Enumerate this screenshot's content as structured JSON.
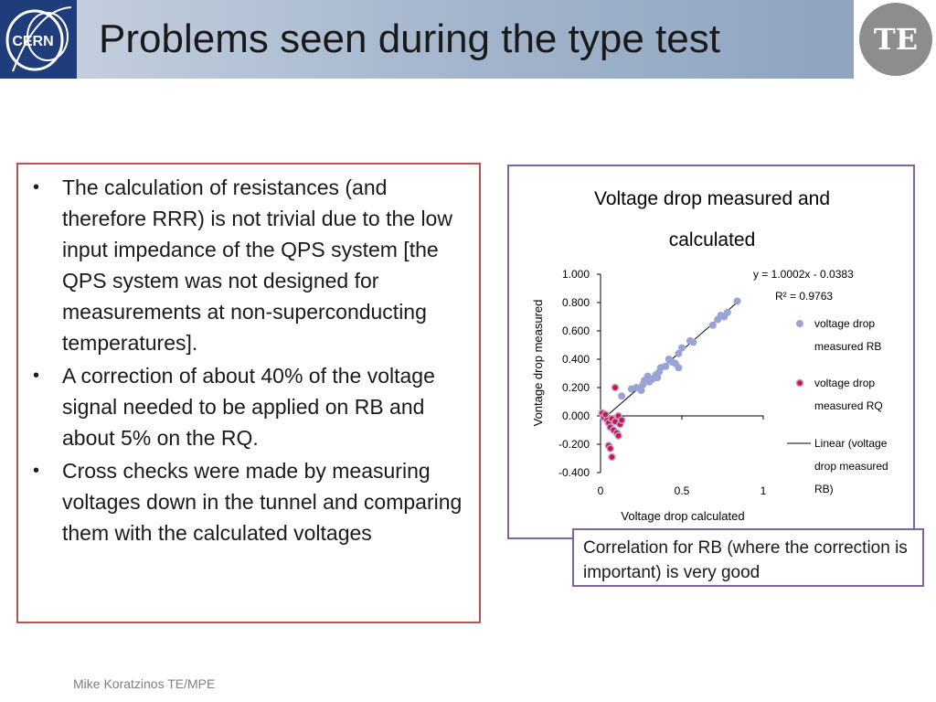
{
  "header": {
    "title": "Problems seen during the type test",
    "left_logo_text": "CERN",
    "right_logo_text": "TE"
  },
  "bullets": [
    "The calculation of resistances (and therefore RRR) is not trivial due to the low input impedance of the QPS system [the QPS system was not designed for measurements at non-superconducting temperatures].",
    "A correction of about 40% of the voltage signal needed to be applied on RB and about 5% on the RQ.",
    "Cross checks were made by measuring voltages down in the tunnel and comparing them with the calculated voltages"
  ],
  "caption": "Correlation for RB (where the correction is important) is very good",
  "footer": "Mike Koratzinos TE/MPE",
  "chart_data": {
    "type": "scatter",
    "title_lines": [
      "Voltage drop measured and",
      "calculated"
    ],
    "xlabel": "Voltage drop calculated",
    "ylabel": "Vontage drop measured",
    "xlim": [
      0,
      1
    ],
    "ylim": [
      -0.4,
      1.0
    ],
    "x_ticks": [
      "0",
      "0.5",
      "1"
    ],
    "x_tick_values": [
      0,
      0.5,
      1
    ],
    "y_ticks": [
      "1.000",
      "0.800",
      "0.600",
      "0.400",
      "0.200",
      "0.000",
      "-0.200",
      "-0.400"
    ],
    "y_tick_values": [
      1.0,
      0.8,
      0.6,
      0.4,
      0.2,
      0.0,
      -0.2,
      -0.4
    ],
    "equation": "y = 1.0002x - 0.0383",
    "r_squared": "R² = 0.9763",
    "legend_position": "right",
    "colors": {
      "rb": "#9aa3d6",
      "rq": "#d0143c",
      "rq_edge": "#b8a0d8",
      "line": "#000000"
    },
    "series": [
      {
        "name": "voltage drop measured RB",
        "legend_lines": [
          "voltage drop",
          "measured RB"
        ],
        "points": [
          [
            0.13,
            0.14
          ],
          [
            0.19,
            0.19
          ],
          [
            0.22,
            0.2
          ],
          [
            0.25,
            0.18
          ],
          [
            0.26,
            0.22
          ],
          [
            0.27,
            0.25
          ],
          [
            0.29,
            0.28
          ],
          [
            0.3,
            0.24
          ],
          [
            0.32,
            0.26
          ],
          [
            0.34,
            0.29
          ],
          [
            0.35,
            0.27
          ],
          [
            0.36,
            0.31
          ],
          [
            0.37,
            0.34
          ],
          [
            0.4,
            0.35
          ],
          [
            0.42,
            0.4
          ],
          [
            0.44,
            0.38
          ],
          [
            0.46,
            0.37
          ],
          [
            0.48,
            0.44
          ],
          [
            0.48,
            0.34
          ],
          [
            0.5,
            0.48
          ],
          [
            0.55,
            0.53
          ],
          [
            0.57,
            0.52
          ],
          [
            0.69,
            0.64
          ],
          [
            0.72,
            0.68
          ],
          [
            0.74,
            0.71
          ],
          [
            0.76,
            0.7
          ],
          [
            0.78,
            0.73
          ],
          [
            0.84,
            0.81
          ]
        ]
      },
      {
        "name": "voltage drop measured RQ",
        "legend_lines": [
          "voltage drop",
          "measured RQ"
        ],
        "points": [
          [
            0.01,
            0.02
          ],
          [
            0.02,
            -0.01
          ],
          [
            0.04,
            -0.03
          ],
          [
            0.05,
            -0.05
          ],
          [
            0.06,
            -0.08
          ],
          [
            0.07,
            -0.02
          ],
          [
            0.08,
            -0.1
          ],
          [
            0.09,
            -0.04
          ],
          [
            0.1,
            -0.12
          ],
          [
            0.11,
            0.0
          ],
          [
            0.12,
            -0.06
          ],
          [
            0.13,
            -0.03
          ],
          [
            0.05,
            -0.21
          ],
          [
            0.06,
            -0.23
          ],
          [
            0.07,
            -0.29
          ],
          [
            0.09,
            0.2
          ],
          [
            0.11,
            -0.14
          ],
          [
            0.03,
            0.01
          ]
        ]
      }
    ],
    "trendline": {
      "name": "Linear (voltage drop measured RB)",
      "legend_lines": [
        "Linear (voltage",
        "drop measured",
        "RB)"
      ],
      "slope": 1.0002,
      "intercept": -0.0383,
      "x_range": [
        0.05,
        0.86
      ]
    }
  }
}
